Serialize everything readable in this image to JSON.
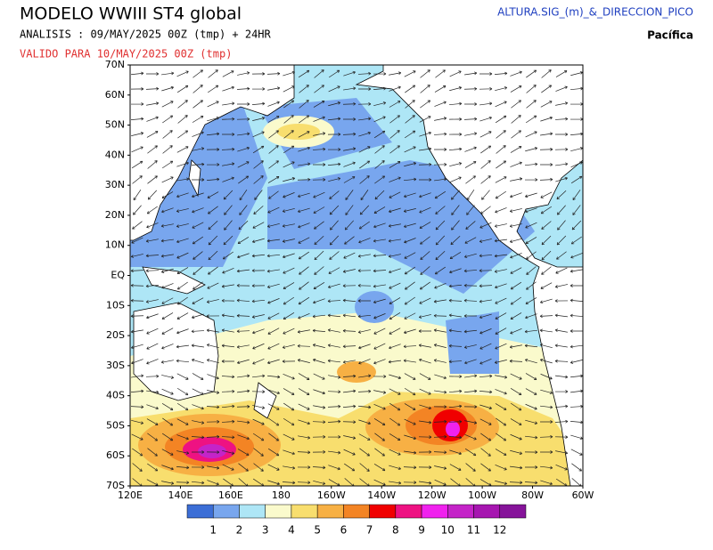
{
  "header": {
    "title": "MODELO WWIII ST4 global",
    "analysis": "ANALISIS : 09/MAY/2025 00Z  (tmp) + 24HR",
    "valid": "VALIDO PARA  10/MAY/2025 00Z  (tmp)",
    "variable": "ALTURA.SIG_(m)_&_DIRECCION_PICO",
    "region": "Pacífica"
  },
  "map": {
    "lat_labels": [
      "70N",
      "60N",
      "50N",
      "40N",
      "30N",
      "20N",
      "10N",
      "EQ",
      "10S",
      "20S",
      "30S",
      "40S",
      "50S",
      "60S",
      "70S"
    ],
    "lon_labels": [
      "120E",
      "140E",
      "160E",
      "180",
      "160W",
      "140W",
      "120W",
      "100W",
      "80W",
      "60W"
    ]
  },
  "colorbar": {
    "levels": [
      1,
      2,
      3,
      4,
      5,
      6,
      7,
      8,
      9,
      10,
      11,
      12
    ],
    "colors": [
      "#3c6ed6",
      "#78a6ee",
      "#aee6f6",
      "#fafacc",
      "#f8de6e",
      "#f7b044",
      "#f38424",
      "#f00000",
      "#ee1282",
      "#f022ee",
      "#c424c8",
      "#a616b0",
      "#86149a"
    ]
  }
}
